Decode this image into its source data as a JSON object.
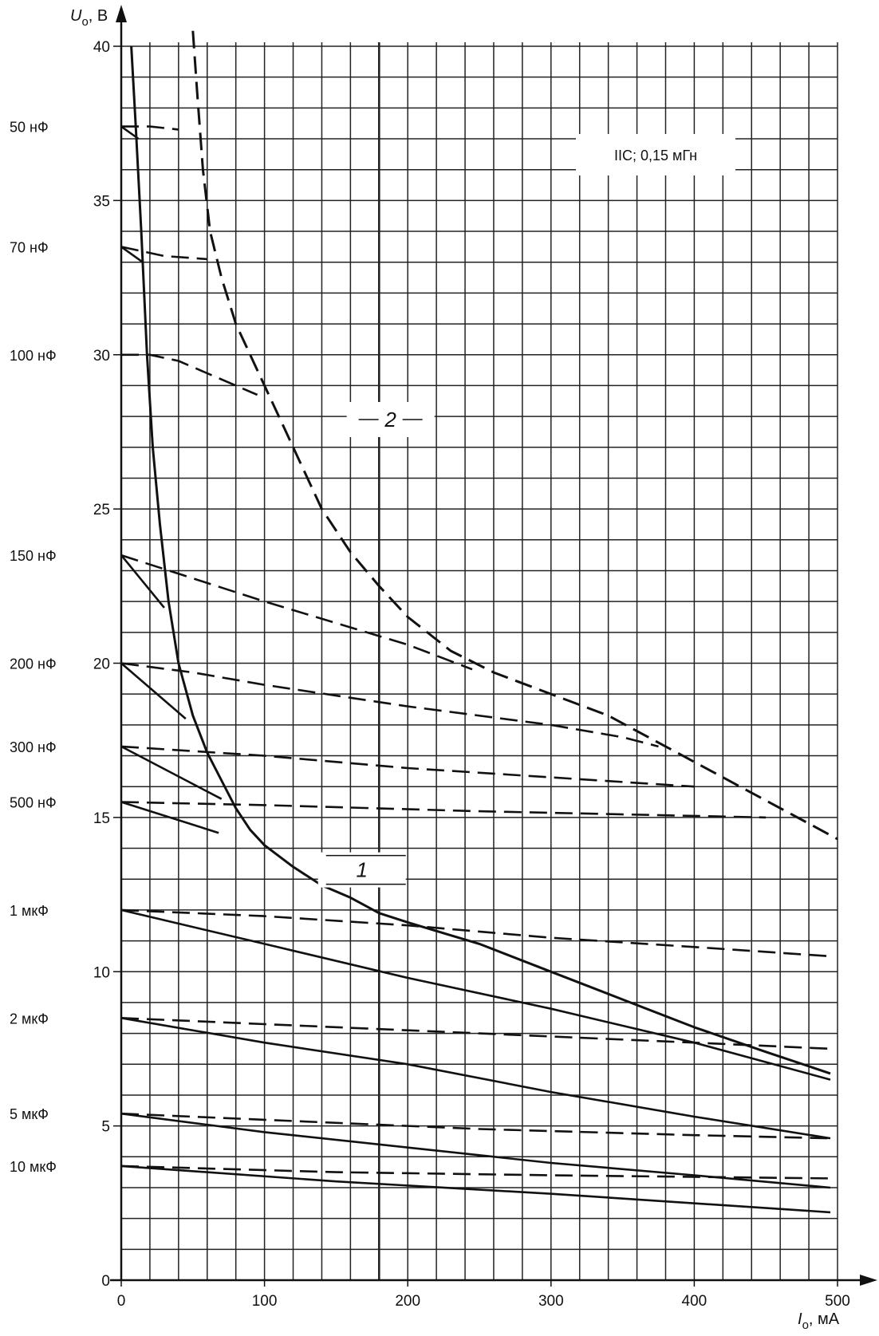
{
  "chart_data": {
    "type": "line",
    "title": "",
    "annotation": "IIC; 0,15 мГн",
    "xlabel": "I",
    "xlabel_sub": "o",
    "xlabel_unit": ", мА",
    "ylabel": "U",
    "ylabel_sub": "o",
    "ylabel_unit": ", В",
    "xlim": [
      0,
      500
    ],
    "ylim": [
      0,
      40
    ],
    "x_ticks": [
      0,
      100,
      200,
      300,
      400,
      500
    ],
    "y_ticks": [
      0,
      5,
      10,
      15,
      20,
      25,
      30,
      35,
      40
    ],
    "grid": {
      "x_step": 20,
      "y_step": 1,
      "emphasized_x": 180
    },
    "curve_labels": [
      {
        "text": "1",
        "x": 168,
        "y": 13.3
      },
      {
        "text": "2",
        "x": 188,
        "y": 27.9
      }
    ],
    "main_curves": [
      {
        "name": "1",
        "style": "solid",
        "points": [
          [
            7,
            40
          ],
          [
            10,
            37.5
          ],
          [
            14,
            34
          ],
          [
            18,
            30
          ],
          [
            22,
            27
          ],
          [
            27,
            24.5
          ],
          [
            33,
            22
          ],
          [
            40,
            20
          ],
          [
            50,
            18.3
          ],
          [
            60,
            17.1
          ],
          [
            70,
            16.2
          ],
          [
            80,
            15.3
          ],
          [
            90,
            14.6
          ],
          [
            100,
            14.1
          ],
          [
            120,
            13.4
          ],
          [
            140,
            12.8
          ],
          [
            160,
            12.4
          ],
          [
            180,
            11.9
          ],
          [
            200,
            11.6
          ],
          [
            250,
            10.9
          ],
          [
            300,
            10
          ],
          [
            350,
            9.1
          ],
          [
            400,
            8.2
          ],
          [
            450,
            7.4
          ],
          [
            495,
            6.7
          ]
        ]
      },
      {
        "name": "2",
        "style": "dashed",
        "points": [
          [
            50,
            40.5
          ],
          [
            53,
            38.5
          ],
          [
            57,
            36
          ],
          [
            62,
            34
          ],
          [
            70,
            32.5
          ],
          [
            80,
            31
          ],
          [
            95,
            29.5
          ],
          [
            110,
            28
          ],
          [
            125,
            26.5
          ],
          [
            140,
            25
          ],
          [
            160,
            23.6
          ],
          [
            180,
            22.5
          ],
          [
            200,
            21.5
          ],
          [
            230,
            20.4
          ],
          [
            260,
            19.7
          ],
          [
            300,
            19
          ],
          [
            340,
            18.3
          ],
          [
            380,
            17.3
          ],
          [
            420,
            16.3
          ],
          [
            460,
            15.3
          ],
          [
            500,
            14.3
          ]
        ]
      }
    ],
    "capacitance_series": [
      {
        "label": "50 нФ",
        "v": 37.4,
        "dashed": [
          [
            0,
            37.4
          ],
          [
            20,
            37.4
          ],
          [
            40,
            37.3
          ]
        ],
        "solid": [
          [
            0,
            37.4
          ],
          [
            12,
            37.0
          ]
        ]
      },
      {
        "label": "70 нФ",
        "v": 33.5,
        "dashed": [
          [
            0,
            33.5
          ],
          [
            30,
            33.2
          ],
          [
            60,
            33.1
          ]
        ],
        "solid": [
          [
            0,
            33.5
          ],
          [
            15,
            33.0
          ]
        ]
      },
      {
        "label": "100 нФ",
        "v": 30.0,
        "dashed": [
          [
            0,
            30
          ],
          [
            20,
            30
          ],
          [
            40,
            29.8
          ],
          [
            65,
            29.3
          ],
          [
            95,
            28.7
          ]
        ],
        "solid": []
      },
      {
        "label": "150 нФ",
        "v": 23.5,
        "dashed": [
          [
            0,
            23.5
          ],
          [
            100,
            22
          ],
          [
            200,
            20.6
          ],
          [
            245,
            19.8
          ]
        ],
        "solid": [
          [
            0,
            23.5
          ],
          [
            30,
            21.8
          ]
        ]
      },
      {
        "label": "200 нФ",
        "v": 20.0,
        "dashed": [
          [
            0,
            20
          ],
          [
            50,
            19.7
          ],
          [
            100,
            19.3
          ],
          [
            200,
            18.6
          ],
          [
            300,
            18
          ],
          [
            350,
            17.6
          ],
          [
            375,
            17.3
          ]
        ],
        "solid": [
          [
            0,
            20
          ],
          [
            45,
            18.2
          ]
        ]
      },
      {
        "label": "300 нФ",
        "v": 17.3,
        "dashed": [
          [
            0,
            17.3
          ],
          [
            100,
            17
          ],
          [
            200,
            16.6
          ],
          [
            300,
            16.3
          ],
          [
            400,
            16
          ]
        ],
        "solid": [
          [
            0,
            17.3
          ],
          [
            70,
            15.6
          ]
        ]
      },
      {
        "label": "500 нФ",
        "v": 15.5,
        "dashed": [
          [
            0,
            15.5
          ],
          [
            100,
            15.4
          ],
          [
            250,
            15.2
          ],
          [
            450,
            15
          ]
        ],
        "solid": [
          [
            0,
            15.5
          ],
          [
            68,
            14.5
          ]
        ]
      },
      {
        "label": "1 мкФ",
        "v": 12.0,
        "dashed": [
          [
            0,
            12
          ],
          [
            100,
            11.8
          ],
          [
            200,
            11.5
          ],
          [
            300,
            11.1
          ],
          [
            400,
            10.8
          ],
          [
            495,
            10.5
          ]
        ],
        "solid": [
          [
            0,
            12
          ],
          [
            100,
            10.9
          ],
          [
            200,
            9.8
          ],
          [
            300,
            8.8
          ],
          [
            400,
            7.7
          ],
          [
            495,
            6.5
          ]
        ]
      },
      {
        "label": "2 мкФ",
        "v": 8.5,
        "dashed": [
          [
            0,
            8.5
          ],
          [
            100,
            8.3
          ],
          [
            250,
            8
          ],
          [
            400,
            7.7
          ],
          [
            495,
            7.5
          ]
        ],
        "solid": [
          [
            0,
            8.5
          ],
          [
            100,
            7.7
          ],
          [
            200,
            7
          ],
          [
            300,
            6.1
          ],
          [
            400,
            5.3
          ],
          [
            495,
            4.6
          ]
        ]
      },
      {
        "label": "5 мкФ",
        "v": 5.4,
        "dashed": [
          [
            0,
            5.4
          ],
          [
            100,
            5.2
          ],
          [
            250,
            4.9
          ],
          [
            400,
            4.7
          ],
          [
            495,
            4.6
          ]
        ],
        "solid": [
          [
            0,
            5.4
          ],
          [
            100,
            4.8
          ],
          [
            200,
            4.3
          ],
          [
            300,
            3.8
          ],
          [
            400,
            3.4
          ],
          [
            495,
            3.0
          ]
        ]
      },
      {
        "label": "10 мкФ",
        "v": 3.7,
        "dashed": [
          [
            0,
            3.7
          ],
          [
            150,
            3.5
          ],
          [
            300,
            3.4
          ],
          [
            495,
            3.3
          ]
        ],
        "solid": [
          [
            0,
            3.7
          ],
          [
            150,
            3.2
          ],
          [
            300,
            2.8
          ],
          [
            495,
            2.2
          ]
        ]
      }
    ]
  }
}
